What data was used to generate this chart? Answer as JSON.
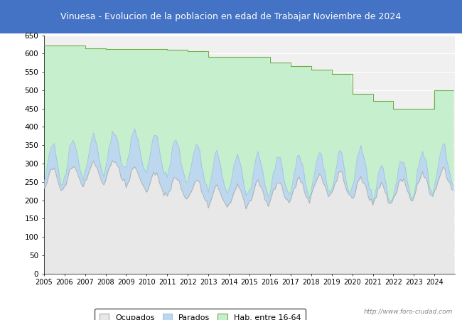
{
  "title": "Vinuesa - Evolucion de la poblacion en edad de Trabajar Noviembre de 2024",
  "title_bg_color": "#4472C4",
  "title_text_color": "white",
  "ylim": [
    0,
    650
  ],
  "yticks": [
    0,
    50,
    100,
    150,
    200,
    250,
    300,
    350,
    400,
    450,
    500,
    550,
    600,
    650
  ],
  "legend_labels": [
    "Ocupados",
    "Parados",
    "Hab. entre 16-64"
  ],
  "legend_colors": [
    "#e8e8e8",
    "#bdd7ee",
    "#c6efce"
  ],
  "legend_edge_colors": [
    "#aaaaaa",
    "#9dc3e6",
    "#70ad47"
  ],
  "watermark": "http://www.foro-ciudad.com",
  "bg_color": "#f0f0f0",
  "plot_bg_color": "#f0f0f0",
  "grid_color": "#ffffff",
  "area_hab_color": "#c6efce",
  "area_hab_edge": "#70ad47",
  "area_parados_color": "#bdd7ee",
  "area_parados_edge": "#9dc3e6",
  "area_ocupados_color": "#e8e8e8",
  "area_ocupados_edge": "#aaaaaa",
  "hab_yearly": [
    622,
    622,
    615,
    613,
    613,
    613,
    610,
    607,
    590,
    590,
    590,
    575,
    565,
    555,
    545,
    490,
    470,
    450,
    450,
    500
  ],
  "ocup_base": [
    255,
    265,
    275,
    280,
    260,
    245,
    235,
    225,
    210,
    210,
    218,
    222,
    228,
    238,
    244,
    230,
    215,
    228,
    240,
    255
  ],
  "ocup_amplitude": 30,
  "par_base": [
    40,
    45,
    50,
    55,
    75,
    80,
    75,
    70,
    65,
    58,
    50,
    45,
    40,
    35,
    30,
    55,
    25,
    28,
    32,
    40
  ],
  "par_amplitude": 25
}
